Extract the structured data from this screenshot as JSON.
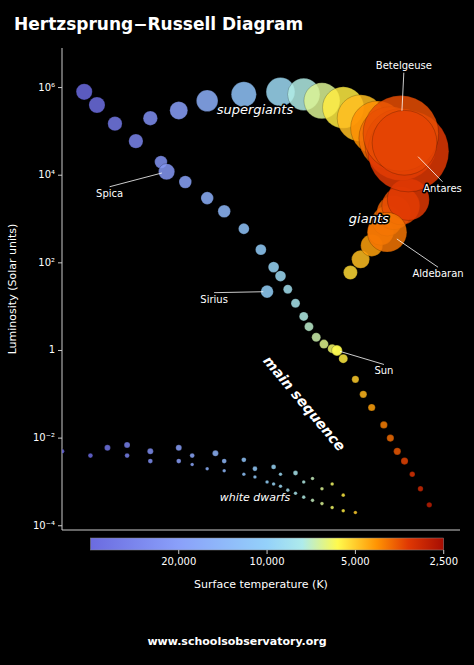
{
  "chart_data": {
    "type": "scatter",
    "title": "Hertzsprung−Russell Diagram",
    "xlabel": "Surface temperature (K)",
    "ylabel": "Luminosity (Solar units)",
    "footer": "www.schoolsobservatory.org",
    "log": true,
    "grid": false,
    "tick_labels": "y",
    "xlim": [
      50000,
      2200
    ],
    "ylim": [
      8e-05,
      8000000
    ],
    "xticks": [],
    "yticks": [
      {
        "value": 0.0001,
        "label": "10⁻⁴"
      },
      {
        "value": 0.01,
        "label": "10⁻²"
      },
      1,
      {
        "value": 100,
        "label": "10²"
      },
      {
        "value": 10000,
        "label": "10⁴"
      },
      {
        "value": 1000000,
        "label": "10⁶"
      }
    ],
    "series": [
      {
        "x": [
          50000,
          40000,
          30000,
          25000,
          20000,
          18000,
          16000,
          14000,
          12000,
          11000,
          10000,
          9500,
          9000,
          8500,
          8000,
          7500,
          7000,
          6500,
          6000,
          5500,
          5000,
          35000,
          25000,
          18000,
          14000,
          11000,
          9000,
          7500,
          6500,
          5500,
          30000,
          20000,
          15000,
          12000,
          9500,
          8000,
          7000,
          6000
        ],
        "values": [
          0.005,
          0.004,
          0.004,
          0.003,
          0.003,
          0.0025,
          0.002,
          0.0018,
          0.0015,
          0.0013,
          0.001,
          0.0009,
          0.0008,
          0.00065,
          0.00055,
          0.00045,
          0.00038,
          0.00032,
          0.00026,
          0.00022,
          0.0002,
          0.006,
          0.005,
          0.004,
          0.003,
          0.002,
          0.0015,
          0.001,
          0.0007,
          0.0005,
          0.007,
          0.006,
          0.0045,
          0.0032,
          0.0022,
          0.0016,
          0.0012,
          0.0009
        ],
        "sizes": [
          4,
          4,
          4,
          4,
          4,
          3,
          3,
          3,
          3,
          3,
          3,
          3,
          3,
          3,
          3,
          3,
          3,
          3,
          3,
          3,
          3,
          5,
          5,
          4,
          4,
          4,
          3,
          3,
          3,
          3,
          5,
          5,
          5,
          4,
          4,
          4,
          3,
          3
        ]
      },
      {
        "x": [
          42000,
          38000,
          33000,
          28000,
          23000,
          19000,
          16000,
          14000,
          12000,
          10500,
          9500,
          9000,
          8500,
          8000,
          7500,
          7200,
          6800,
          6400,
          6000,
          5778,
          5500,
          5000,
          4700,
          4400,
          4000,
          3800,
          3600,
          3400,
          3200,
          3000,
          2800
        ],
        "values": [
          800000,
          400000,
          150000,
          60000,
          20000,
          7000,
          3000,
          1500,
          600,
          200,
          80,
          50,
          25,
          12,
          6,
          3.5,
          2.0,
          1.4,
          1.1,
          1.0,
          0.65,
          0.22,
          0.1,
          0.05,
          0.02,
          0.01,
          0.005,
          0.003,
          0.0015,
          0.0007,
          0.0003
        ],
        "sizes": [
          9,
          9,
          8,
          8,
          7,
          7,
          7,
          7,
          6,
          6,
          6,
          6,
          5,
          5,
          5,
          5,
          5,
          5,
          5,
          5,
          5,
          4,
          4,
          4,
          4,
          4,
          4,
          4,
          3,
          3,
          3
        ]
      },
      {
        "x": [
          5200,
          4800,
          4400,
          4100,
          3900,
          3700,
          3500,
          3300
        ],
        "values": [
          60,
          120,
          250,
          500,
          900,
          1400,
          2000,
          2800
        ],
        "sizes": [
          7,
          9,
          11,
          13,
          15,
          17,
          19,
          21
        ]
      },
      {
        "x": [
          25000,
          20000,
          16000,
          12000,
          9000,
          7500,
          6500,
          5500,
          4800,
          4200,
          3800,
          3500,
          3300
        ],
        "values": [
          200000,
          300000,
          500000,
          700000,
          800000,
          700000,
          500000,
          350000,
          200000,
          120000,
          70000,
          50000,
          35000
        ],
        "sizes": [
          8,
          10,
          12,
          14,
          16,
          18,
          20,
          23,
          26,
          30,
          35,
          40,
          45
        ]
      },
      {
        "x": [
          3500,
          3400,
          3900,
          22000,
          10000,
          5778
        ],
        "values": [
          90000,
          55000,
          500,
          12000,
          22,
          1.0
        ],
        "sizes": [
          42,
          36,
          22,
          9,
          7,
          6
        ],
        "labels": [
          "Betelgeuse",
          "Antares",
          "Aldebaran",
          "Spica",
          "Sirius",
          "Sun"
        ]
      }
    ],
    "annotations": [
      {
        "text": "supergiants",
        "x": 11000,
        "y": 300000
      },
      {
        "text": "giants",
        "x": 4500,
        "y": 1000
      },
      {
        "text": "main sequence",
        "x": 7500,
        "y": 0.06
      },
      {
        "text": "white dwarfs",
        "x": 11000,
        "y": 0.00042
      }
    ],
    "colorbar": {
      "range": [
        40000,
        2500
      ],
      "ticks": [
        {
          "value": 20000,
          "label": "20,000"
        },
        {
          "value": 10000,
          "label": "10,000"
        },
        {
          "value": 5000,
          "label": "5,000"
        },
        {
          "value": 2500,
          "label": "2,500"
        }
      ]
    }
  }
}
